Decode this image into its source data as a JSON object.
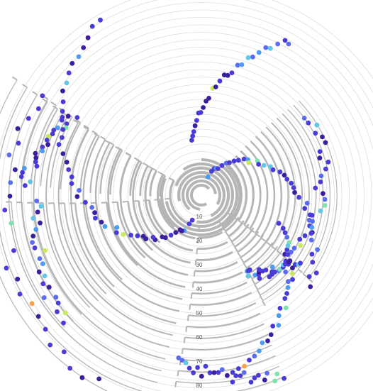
{
  "chart_data": {
    "type": "scatter",
    "subtype": "radial spiral phylogenetic tree",
    "title": "",
    "radial_axis": {
      "ticks": [
        10,
        20,
        30,
        40,
        50,
        60,
        70,
        80
      ],
      "range": [
        0,
        80
      ],
      "rings": "light gray concentric rings",
      "grid": true
    },
    "colors": {
      "background": "#ffffff",
      "branch": "#b5b5b5",
      "ring": "#dddddd",
      "leaf_palette": [
        "#3b1f9e",
        "#4b3bd6",
        "#5a6df0",
        "#4c9cf0",
        "#62c7e6",
        "#7fe0b0",
        "#c9e85a",
        "#f6a24a",
        "#e8513a"
      ]
    },
    "leaf_clusters_count": 9,
    "clades": [
      {
        "name": "",
        "theta_start": 262,
        "theta_end": 148,
        "depth": 82
      },
      {
        "name": "",
        "theta_start": 50,
        "theta_end": -38,
        "depth": 46
      },
      {
        "name": "",
        "theta_start": -30,
        "theta_end": -60,
        "depth": 40
      },
      {
        "name": "",
        "theta_start": 230,
        "theta_end": 182,
        "depth": 70
      },
      {
        "name": "",
        "theta_start": 300,
        "theta_end": 262,
        "depth": 74
      },
      {
        "name": "",
        "theta_start": 182,
        "theta_end": 148,
        "depth": 66
      }
    ]
  }
}
